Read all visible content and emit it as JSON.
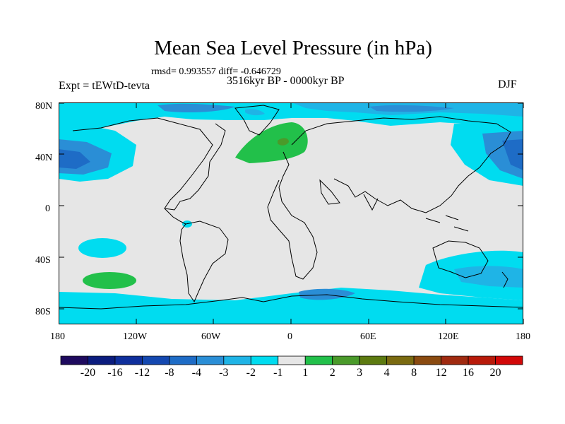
{
  "figure": {
    "title": "Mean Sea Level Pressure (in hPa)",
    "stats": "rmsd= 0.993557 diff= -0.646729",
    "experiment": "Expt = tEWtD-tevta",
    "period": "3516kyr BP - 0000kyr BP",
    "season": "DJF"
  },
  "axes": {
    "x_ticks": [
      "180",
      "120W",
      "60W",
      "0",
      "60E",
      "120E",
      "180"
    ],
    "y_ticks": [
      "80N",
      "40N",
      "0",
      "40S",
      "80S"
    ]
  },
  "colorbar": {
    "labels": [
      "-20",
      "-16",
      "-12",
      "-8",
      "-4",
      "-3",
      "-2",
      "-1",
      "1",
      "2",
      "3",
      "4",
      "8",
      "12",
      "16",
      "20"
    ],
    "colors": [
      "#1e0a5e",
      "#0b1c7e",
      "#0f2f9c",
      "#1448b0",
      "#1e6cc6",
      "#2a8ed6",
      "#1fb4e6",
      "#00dcf0",
      "#e6e6e6",
      "#22c04a",
      "#4a9a2a",
      "#5c7a10",
      "#7a6a10",
      "#8a4a10",
      "#a02a10",
      "#b81a0a",
      "#d20808"
    ]
  },
  "map_colors": {
    "background": "#e6e6e6",
    "light_neg": "#00dcf0",
    "mid_neg": "#1fb4e6",
    "dark_neg": "#2a8ed6",
    "darker_neg": "#1e6cc6",
    "pos": "#22c04a",
    "pos_dark": "#4a9a2a"
  }
}
